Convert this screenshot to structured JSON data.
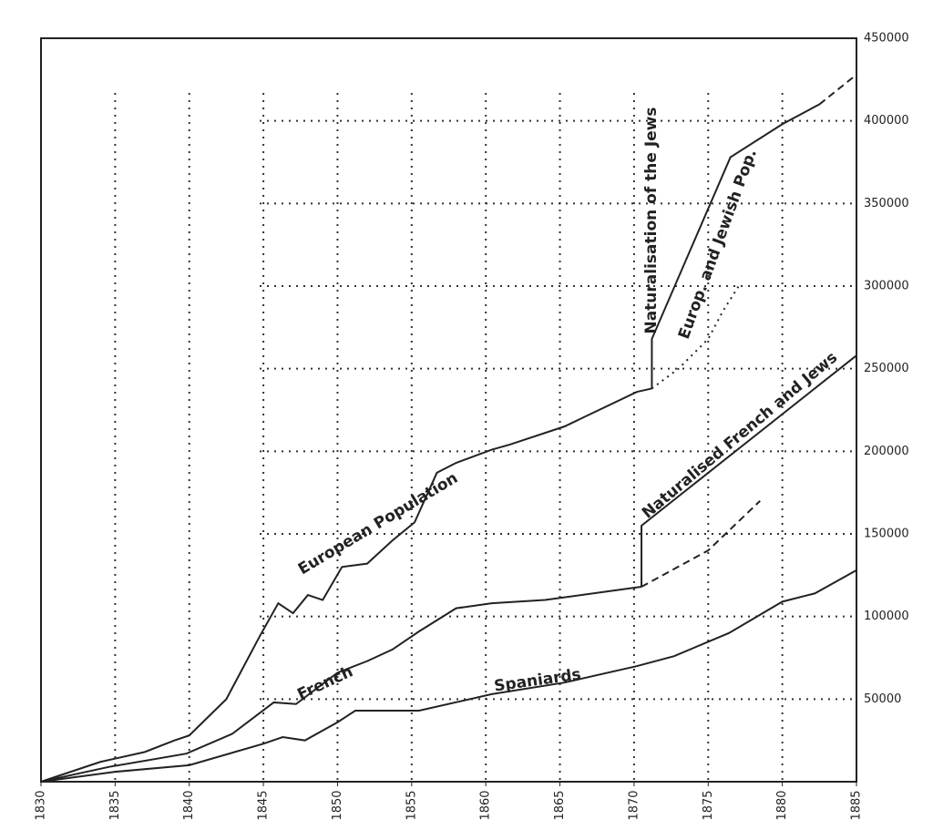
{
  "chart_data": {
    "type": "line",
    "xlim": [
      1830,
      1885
    ],
    "xticks": [
      1830,
      1835,
      1840,
      1845,
      1850,
      1855,
      1860,
      1865,
      1870,
      1875,
      1880,
      1885
    ],
    "ylim": [
      0,
      450000
    ],
    "yticks": [
      50000,
      100000,
      150000,
      200000,
      250000,
      300000,
      350000,
      400000,
      450000
    ],
    "grid": true,
    "annotations": [
      "Naturalisation of the Jews"
    ],
    "series": [
      {
        "name": "European Population",
        "color": "#222222",
        "style": "solid",
        "x": [
          1830,
          1834,
          1837,
          1839,
          1840,
          1842.5,
          1844.75,
          1846,
          1847,
          1848,
          1849,
          1850.3,
          1852,
          1853.7,
          1855.2,
          1856.7,
          1858,
          1860.4,
          1861.6,
          1865.3,
          1870.2,
          1871.2
        ],
        "values": [
          0,
          12000,
          18000,
          25000,
          28000,
          50000,
          88000,
          108000,
          102000,
          113000,
          110000,
          130000,
          132000,
          146000,
          157000,
          187000,
          193000,
          201000,
          204000,
          215000,
          236000,
          238000
        ]
      },
      {
        "color": "#222222",
        "style": "dotted",
        "x": [
          1871.2,
          1873,
          1875,
          1876,
          1877.2
        ],
        "values": [
          238000,
          250000,
          268000,
          285000,
          302000
        ]
      },
      {
        "name": "Europ. and Jewish Pop.",
        "color": "#222222",
        "style": "solid",
        "x": [
          1871.2,
          1871.2,
          1876.5,
          1880,
          1882.5
        ],
        "values": [
          238000,
          268000,
          378000,
          398000,
          410000
        ]
      },
      {
        "color": "#222222",
        "style": "dashed",
        "x": [
          1882.5,
          1885
        ],
        "values": [
          410000,
          428000
        ]
      },
      {
        "name": "French",
        "color": "#222222",
        "style": "solid",
        "x": [
          1830,
          1834.6,
          1839.8,
          1842.9,
          1845.7,
          1847.2,
          1850,
          1852,
          1853.7,
          1855.5,
          1858,
          1860.4,
          1864,
          1870.5
        ],
        "values": [
          0,
          9000,
          17000,
          29000,
          48000,
          47000,
          66000,
          73000,
          80000,
          91000,
          105000,
          108000,
          110000,
          118000
        ]
      },
      {
        "name": "Naturalised French and Jews",
        "color": "#222222",
        "style": "solid",
        "x": [
          1870.5,
          1870.5,
          1885
        ],
        "values": [
          118000,
          155000,
          258000
        ]
      },
      {
        "color": "#222222",
        "style": "dashed",
        "x": [
          1870.5,
          1875,
          1878.5
        ],
        "values": [
          118000,
          140000,
          170000
        ]
      },
      {
        "name": "Spaniards",
        "color": "#222222",
        "style": "solid",
        "x": [
          1830,
          1835,
          1840,
          1845,
          1846.3,
          1847.8,
          1850,
          1851.2,
          1855.5,
          1860.4,
          1865.3,
          1870.2,
          1872.7,
          1876.4,
          1880,
          1882.2,
          1885
        ],
        "values": [
          0,
          6000,
          10000,
          23000,
          27000,
          25000,
          36000,
          43000,
          43000,
          53000,
          60000,
          70000,
          76000,
          90000,
          109000,
          114000,
          128000
        ]
      }
    ]
  }
}
